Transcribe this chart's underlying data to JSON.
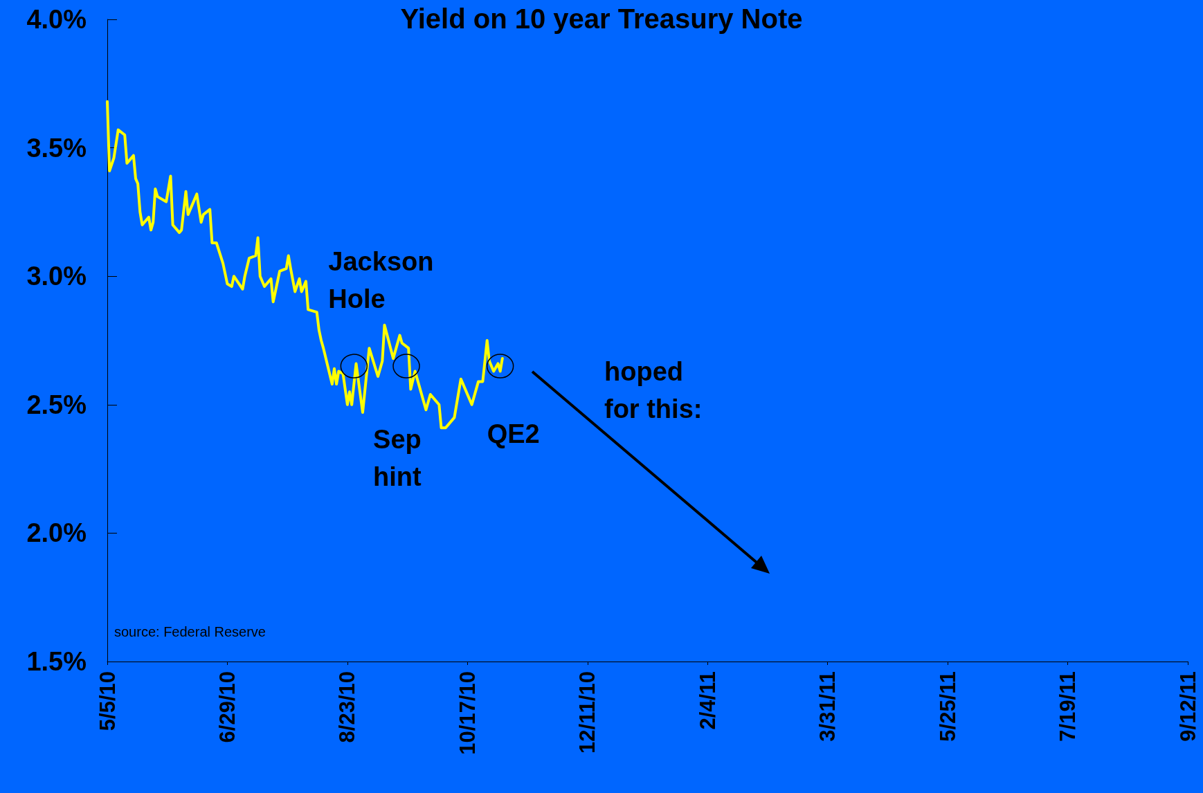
{
  "chart_data": {
    "type": "line",
    "title": "Yield on 10 year Treasury Note",
    "x": [
      "2010-05-05",
      "2010-05-06",
      "2010-05-08",
      "2010-05-10",
      "2010-05-13",
      "2010-05-14",
      "2010-05-17",
      "2010-05-18",
      "2010-05-19",
      "2010-05-20",
      "2010-05-21",
      "2010-05-24",
      "2010-05-25",
      "2010-05-26",
      "2010-05-27",
      "2010-05-28",
      "2010-06-01",
      "2010-06-03",
      "2010-06-04",
      "2010-06-07",
      "2010-06-08",
      "2010-06-10",
      "2010-06-11",
      "2010-06-15",
      "2010-06-17",
      "2010-06-18",
      "2010-06-21",
      "2010-06-22",
      "2010-06-24",
      "2010-06-27",
      "2010-06-29",
      "2010-07-01",
      "2010-07-02",
      "2010-07-06",
      "2010-07-07",
      "2010-07-09",
      "2010-07-12",
      "2010-07-13",
      "2010-07-14",
      "2010-07-16",
      "2010-07-19",
      "2010-07-20",
      "2010-07-23",
      "2010-07-26",
      "2010-07-27",
      "2010-07-28",
      "2010-07-30",
      "2010-08-01",
      "2010-08-02",
      "2010-08-04",
      "2010-08-05",
      "2010-08-09",
      "2010-08-10",
      "2010-08-11",
      "2010-08-12",
      "2010-08-16",
      "2010-08-17",
      "2010-08-18",
      "2010-08-19",
      "2010-08-21",
      "2010-08-23",
      "2010-08-24",
      "2010-08-25",
      "2010-08-27",
      "2010-08-30",
      "2010-09-02",
      "2010-09-06",
      "2010-09-08",
      "2010-09-09",
      "2010-09-13",
      "2010-09-16",
      "2010-09-17",
      "2010-09-20",
      "2010-09-21",
      "2010-09-23",
      "2010-09-28",
      "2010-09-30",
      "2010-10-04",
      "2010-10-05",
      "2010-10-07",
      "2010-10-11",
      "2010-10-14",
      "2010-10-19",
      "2010-10-22",
      "2010-10-24",
      "2010-10-26",
      "2010-10-27",
      "2010-10-29",
      "2010-10-31",
      "2010-11-01",
      "2010-11-02"
    ],
    "series": [
      {
        "color": "#ffff00",
        "values": [
          3.68,
          3.41,
          3.46,
          3.57,
          3.55,
          3.44,
          3.47,
          3.38,
          3.36,
          3.25,
          3.2,
          3.23,
          3.18,
          3.21,
          3.34,
          3.31,
          3.29,
          3.39,
          3.2,
          3.17,
          3.18,
          3.33,
          3.24,
          3.32,
          3.21,
          3.24,
          3.26,
          3.13,
          3.13,
          3.05,
          2.97,
          2.96,
          3.0,
          2.95,
          3.0,
          3.07,
          3.08,
          3.15,
          3.0,
          2.96,
          2.99,
          2.9,
          3.02,
          3.03,
          3.08,
          3.03,
          2.94,
          2.99,
          2.94,
          2.98,
          2.87,
          2.86,
          2.79,
          2.75,
          2.72,
          2.58,
          2.64,
          2.58,
          2.63,
          2.62,
          2.5,
          2.55,
          2.5,
          2.66,
          2.47,
          2.72,
          2.61,
          2.67,
          2.81,
          2.68,
          2.77,
          2.74,
          2.72,
          2.56,
          2.63,
          2.48,
          2.54,
          2.5,
          2.41,
          2.41,
          2.45,
          2.6,
          2.5,
          2.59,
          2.59,
          2.75,
          2.67,
          2.63,
          2.66,
          2.63,
          2.68
        ]
      }
    ],
    "xlim": [
      "2010-05-05",
      "2011-09-12"
    ],
    "xticks": [
      {
        "value": "2010-05-05",
        "label": "5/5/10"
      },
      {
        "value": "2010-06-29",
        "label": "6/29/10"
      },
      {
        "value": "2010-08-23",
        "label": "8/23/10"
      },
      {
        "value": "2010-10-17",
        "label": "10/17/10"
      },
      {
        "value": "2010-12-11",
        "label": "12/11/10"
      },
      {
        "value": "2011-02-04",
        "label": "2/4/11"
      },
      {
        "value": "2011-03-31",
        "label": "3/31/11"
      },
      {
        "value": "2011-05-25",
        "label": "5/25/11"
      },
      {
        "value": "2011-07-19",
        "label": "7/19/11"
      },
      {
        "value": "2011-09-12",
        "label": "9/12/11"
      }
    ],
    "ylim": [
      1.5,
      4.0
    ],
    "yticks": [
      {
        "value": 1.5,
        "label": "1.5%"
      },
      {
        "value": 2.0,
        "label": "2.0%"
      },
      {
        "value": 2.5,
        "label": "2.5%"
      },
      {
        "value": 3.0,
        "label": "3.0%"
      },
      {
        "value": 3.5,
        "label": "3.5%"
      },
      {
        "value": 4.0,
        "label": "4.0%"
      }
    ],
    "annotations": [
      {
        "text": "Jackson\nHole",
        "x": "2010-08-26",
        "y": 2.65
      },
      {
        "text": "Sep\nhint",
        "x": "2010-09-19",
        "y": 2.65
      },
      {
        "text": "QE2",
        "x": "2010-11-01",
        "y": 2.65
      },
      "hoped for this:",
      "source: Federal Reserve"
    ],
    "grid": false,
    "marker": "none",
    "line_style": "solid"
  }
}
